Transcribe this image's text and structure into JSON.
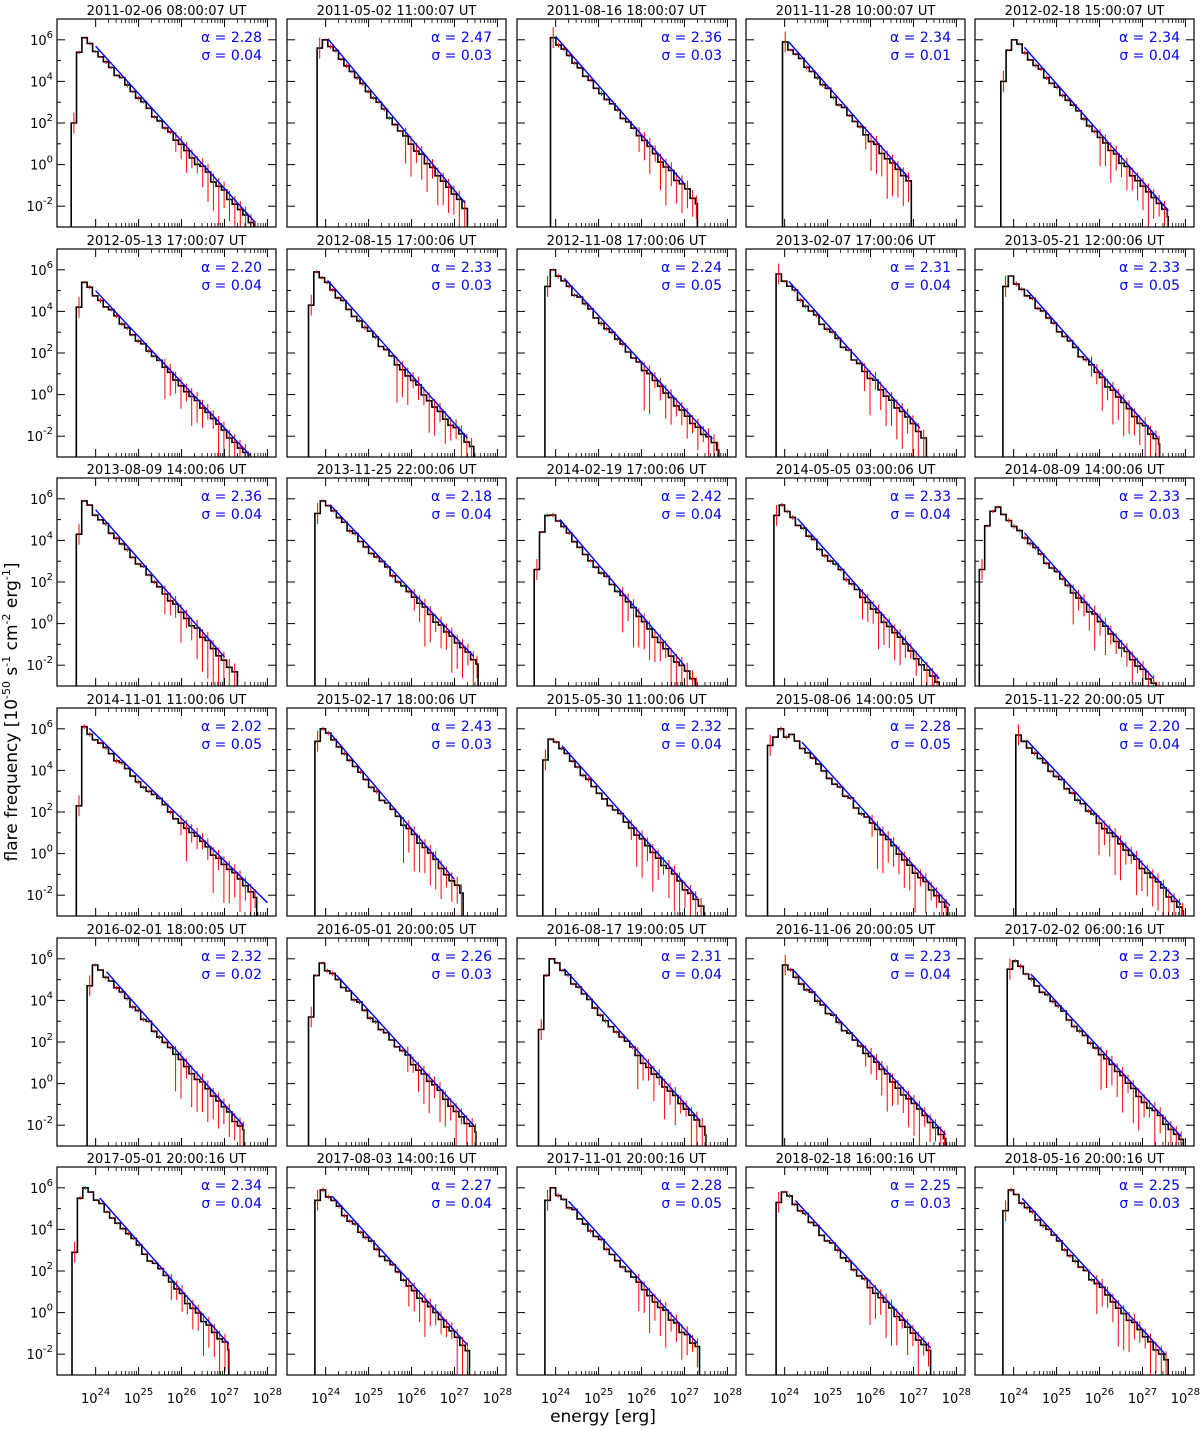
{
  "chart_data": {
    "type": "line",
    "layout": {
      "rows": 6,
      "cols": 5
    },
    "xlabel": "energy [erg]",
    "ylabel": "flare frequency [10^-50 s^-1 cm^-2 erg^-1]",
    "ylabel_parts": {
      "main": "flare frequency [10",
      "exp1": "-50",
      "s": " s",
      "exp2": "-1",
      "cm": " cm",
      "exp3": "-2",
      "erg": " erg",
      "exp4": "-1",
      "end": "]"
    },
    "xscale": "log",
    "yscale": "log",
    "xlim_log10": [
      23.1,
      28.2
    ],
    "ylim_log10": [
      -3.0,
      7.0
    ],
    "x_ticks": [
      {
        "base": "10",
        "exp": "24"
      },
      {
        "base": "10",
        "exp": "25"
      },
      {
        "base": "10",
        "exp": "26"
      },
      {
        "base": "10",
        "exp": "27"
      },
      {
        "base": "10",
        "exp": "28"
      }
    ],
    "y_ticks": [
      {
        "base": "10",
        "exp": "6"
      },
      {
        "base": "10",
        "exp": "4"
      },
      {
        "base": "10",
        "exp": "2"
      },
      {
        "base": "10",
        "exp": "0"
      },
      {
        "base": "10",
        "exp": "-2"
      }
    ],
    "series_colors": {
      "histogram": "#000000",
      "error_bars": "#ff0000",
      "fit": "#0000ff"
    },
    "panels": [
      {
        "title": "2011-02-06  08:00:07  UT",
        "alpha": "α = 2.28",
        "sigma": "σ = 0.04",
        "lead": [
          2.0,
          5.4,
          6.1
        ],
        "peak_log10": 6.1,
        "slope": 2.28,
        "fit_x": [
          24.0,
          27.7
        ],
        "x_max": 27.75,
        "xstart": 23.43
      },
      {
        "title": "2011-05-02  11:00:07  UT",
        "alpha": "α = 2.47",
        "sigma": "σ = 0.03",
        "lead": [
          5.6,
          6.0
        ],
        "peak_log10": 6.0,
        "slope": 2.47,
        "fit_x": [
          24.05,
          27.25
        ],
        "x_max": 27.3,
        "xstart": 23.8
      },
      {
        "title": "2011-08-16  18:00:07  UT",
        "alpha": "α = 2.36",
        "sigma": "σ = 0.03",
        "lead": [
          6.1
        ],
        "peak_log10": 6.1,
        "slope": 2.36,
        "fit_x": [
          24.0,
          27.0
        ],
        "x_max": 27.3,
        "xstart": 23.88
      },
      {
        "title": "2011-11-28  10:00:07  UT",
        "alpha": "α = 2.34",
        "sigma": "σ = 0.01",
        "lead": [
          5.9
        ],
        "peak_log10": 5.9,
        "slope": 2.34,
        "fit_x": [
          24.1,
          26.9
        ],
        "x_max": 26.95,
        "xstart": 23.95
      },
      {
        "title": "2012-02-18  15:00:07  UT",
        "alpha": "α = 2.34",
        "sigma": "σ = 0.04",
        "lead": [
          4.0,
          5.5,
          6.0
        ],
        "peak_log10": 6.0,
        "slope": 2.34,
        "fit_x": [
          24.25,
          27.6
        ],
        "x_max": 27.6,
        "xstart": 23.7
      },
      {
        "title": "2012-05-13  17:00:07  UT",
        "alpha": "α = 2.20",
        "sigma": "σ = 0.04",
        "lead": [
          4.2,
          5.4
        ],
        "peak_log10": 5.4,
        "slope": 2.2,
        "fit_x": [
          24.0,
          27.6
        ],
        "x_max": 27.75,
        "xstart": 23.55
      },
      {
        "title": "2012-08-15  17:00:06  UT",
        "alpha": "α = 2.33",
        "sigma": "σ = 0.03",
        "lead": [
          4.3,
          5.9
        ],
        "peak_log10": 5.9,
        "slope": 2.33,
        "fit_x": [
          24.05,
          27.3
        ],
        "x_max": 27.45,
        "xstart": 23.6
      },
      {
        "title": "2012-11-08  17:00:06  UT",
        "alpha": "α = 2.24",
        "sigma": "σ = 0.05",
        "lead": [
          5.2,
          6.0
        ],
        "peak_log10": 6.0,
        "slope": 2.24,
        "fit_x": [
          24.2,
          27.65
        ],
        "x_max": 27.8,
        "xstart": 23.75
      },
      {
        "title": "2013-02-07  17:00:06  UT",
        "alpha": "α = 2.31",
        "sigma": "σ = 0.04",
        "lead": [
          5.8
        ],
        "peak_log10": 5.8,
        "slope": 2.31,
        "fit_x": [
          24.1,
          27.15
        ],
        "x_max": 27.3,
        "xstart": 23.8
      },
      {
        "title": "2013-05-21  12:00:06  UT",
        "alpha": "α = 2.33",
        "sigma": "σ = 0.05",
        "lead": [
          5.2,
          5.7
        ],
        "peak_log10": 5.7,
        "slope": 2.33,
        "fit_x": [
          24.3,
          27.35
        ],
        "x_max": 27.4,
        "xstart": 23.75
      },
      {
        "title": "2013-08-09  14:00:06  UT",
        "alpha": "α = 2.36",
        "sigma": "σ = 0.04",
        "lead": [
          4.3,
          5.9
        ],
        "peak_log10": 5.9,
        "slope": 2.36,
        "fit_x": [
          24.0,
          27.0
        ],
        "x_max": 27.3,
        "xstart": 23.55
      },
      {
        "title": "2013-11-25  22:00:06  UT",
        "alpha": "α = 2.18",
        "sigma": "σ = 0.04",
        "lead": [
          5.3,
          5.9
        ],
        "peak_log10": 5.9,
        "slope": 2.18,
        "fit_x": [
          24.1,
          27.45
        ],
        "x_max": 27.55,
        "xstart": 23.75
      },
      {
        "title": "2014-02-19  17:00:06  UT",
        "alpha": "α = 2.42",
        "sigma": "σ = 0.04",
        "lead": [
          2.6,
          4.4,
          5.2
        ],
        "peak_log10": 5.5,
        "slope": 2.42,
        "fit_x": [
          24.1,
          27.0
        ],
        "x_max": 27.3,
        "xstart": 23.5
      },
      {
        "title": "2014-05-05  03:00:06  UT",
        "alpha": "α = 2.33",
        "sigma": "σ = 0.04",
        "lead": [
          5.2,
          5.7
        ],
        "peak_log10": 5.7,
        "slope": 2.33,
        "fit_x": [
          24.3,
          27.6
        ],
        "x_max": 27.6,
        "xstart": 23.75
      },
      {
        "title": "2014-08-09  14:00:06  UT",
        "alpha": "α = 2.33",
        "sigma": "σ = 0.03",
        "lead": [
          2.6,
          4.7,
          5.4,
          5.6
        ],
        "peak_log10": 5.6,
        "slope": 2.33,
        "fit_x": [
          24.25,
          27.25
        ],
        "x_max": 27.45,
        "xstart": 23.2
      },
      {
        "title": "2014-11-01  11:00:06  UT",
        "alpha": "α = 2.02",
        "sigma": "σ = 0.05",
        "lead": [
          2.3,
          6.1
        ],
        "peak_log10": 6.1,
        "slope": 2.02,
        "fit_x": [
          23.85,
          28.0
        ],
        "x_max": 27.75,
        "xstart": 23.55
      },
      {
        "title": "2015-02-17  18:00:06  UT",
        "alpha": "α = 2.43",
        "sigma": "σ = 0.03",
        "lead": [
          5.4,
          6.0
        ],
        "peak_log10": 6.0,
        "slope": 2.43,
        "fit_x": [
          24.1,
          27.0
        ],
        "x_max": 27.2,
        "xstart": 23.75
      },
      {
        "title": "2015-05-30  11:00:06  UT",
        "alpha": "α = 2.32",
        "sigma": "σ = 0.04",
        "lead": [
          4.5,
          5.5
        ],
        "peak_log10": 5.6,
        "slope": 2.32,
        "fit_x": [
          24.15,
          27.3
        ],
        "x_max": 27.45,
        "xstart": 23.7
      },
      {
        "title": "2015-08-06  14:00:05  UT",
        "alpha": "α = 2.28",
        "sigma": "σ = 0.05",
        "lead": [
          5.2,
          5.6,
          6.0,
          5.6
        ],
        "peak_log10": 6.0,
        "slope": 2.28,
        "fit_x": [
          24.4,
          27.85
        ],
        "x_max": 27.8,
        "xstart": 23.6
      },
      {
        "title": "2015-11-22  20:00:05  UT",
        "alpha": "α = 2.20",
        "sigma": "σ = 0.04",
        "lead": [
          5.7
        ],
        "peak_log10": 5.7,
        "slope": 2.2,
        "fit_x": [
          24.3,
          27.9
        ],
        "x_max": 27.95,
        "xstart": 24.05
      },
      {
        "title": "2016-02-01  18:00:05  UT",
        "alpha": "α = 2.32",
        "sigma": "σ = 0.02",
        "lead": [
          4.7,
          5.7
        ],
        "peak_log10": 5.8,
        "slope": 2.32,
        "fit_x": [
          24.25,
          27.45
        ],
        "x_max": 27.45,
        "xstart": 23.8
      },
      {
        "title": "2016-05-01  20:00:05  UT",
        "alpha": "α = 2.26",
        "sigma": "σ = 0.03",
        "lead": [
          3.2,
          5.2,
          5.8
        ],
        "peak_log10": 5.8,
        "slope": 2.26,
        "fit_x": [
          24.25,
          27.45
        ],
        "x_max": 27.5,
        "xstart": 23.6
      },
      {
        "title": "2016-08-17  19:00:05  UT",
        "alpha": "α = 2.31",
        "sigma": "σ = 0.04",
        "lead": [
          2.6,
          5.2,
          6.0
        ],
        "peak_log10": 6.0,
        "slope": 2.31,
        "fit_x": [
          24.2,
          27.35
        ],
        "x_max": 27.5,
        "xstart": 23.6
      },
      {
        "title": "2016-11-06  20:00:05  UT",
        "alpha": "α = 2.23",
        "sigma": "σ = 0.04",
        "lead": [
          5.7
        ],
        "peak_log10": 5.7,
        "slope": 2.23,
        "fit_x": [
          24.2,
          27.75
        ],
        "x_max": 27.75,
        "xstart": 23.95
      },
      {
        "title": "2017-02-02  06:00:16  UT",
        "alpha": "α = 2.23",
        "sigma": "σ = 0.03",
        "lead": [
          5.5,
          5.9
        ],
        "peak_log10": 5.9,
        "slope": 2.23,
        "fit_x": [
          24.4,
          27.9
        ],
        "x_max": 27.95,
        "xstart": 23.85
      },
      {
        "title": "2017-05-01  20:00:16  UT",
        "alpha": "α = 2.34",
        "sigma": "σ = 0.04",
        "lead": [
          2.9,
          5.5,
          6.0
        ],
        "peak_log10": 6.1,
        "slope": 2.34,
        "fit_x": [
          24.1,
          27.1
        ],
        "x_max": 27.1,
        "xstart": 23.45
      },
      {
        "title": "2017-08-03  14:00:16  UT",
        "alpha": "α = 2.27",
        "sigma": "σ = 0.04",
        "lead": [
          5.4,
          5.9
        ],
        "peak_log10": 5.9,
        "slope": 2.27,
        "fit_x": [
          24.15,
          27.3
        ],
        "x_max": 27.35,
        "xstart": 23.75
      },
      {
        "title": "2017-11-01  20:00:16  UT",
        "alpha": "α = 2.28",
        "sigma": "σ = 0.05",
        "lead": [
          5.4,
          6.0
        ],
        "peak_log10": 6.0,
        "slope": 2.28,
        "fit_x": [
          24.3,
          27.3
        ],
        "x_max": 27.35,
        "xstart": 23.75
      },
      {
        "title": "2018-02-18  16:00:16  UT",
        "alpha": "α = 2.25",
        "sigma": "σ = 0.03",
        "lead": [
          5.3,
          5.8
        ],
        "peak_log10": 5.8,
        "slope": 2.25,
        "fit_x": [
          24.25,
          27.4
        ],
        "x_max": 27.4,
        "xstart": 23.8
      },
      {
        "title": "2018-05-16  20:00:16  UT",
        "alpha": "α = 2.25",
        "sigma": "σ = 0.03",
        "lead": [
          4.9,
          5.9
        ],
        "peak_log10": 5.9,
        "slope": 2.25,
        "fit_x": [
          24.2,
          27.55
        ],
        "x_max": 27.6,
        "xstart": 23.75
      }
    ]
  }
}
